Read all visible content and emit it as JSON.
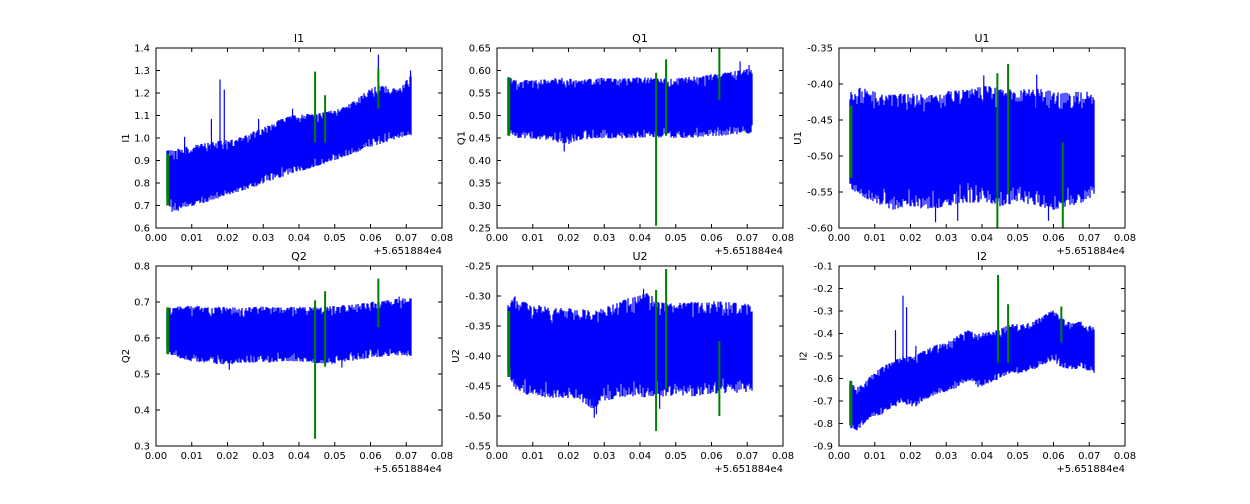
{
  "figure": {
    "background": "#ffffff",
    "text_color": "#000000",
    "line_color": "#0000ff",
    "event_color": "#008000",
    "frame_color": "#000000",
    "x_offset_label": "+5.651884e4",
    "xlim": [
      0,
      0.08
    ],
    "xticks": {
      "values": [
        0,
        0.01,
        0.02,
        0.03,
        0.04,
        0.05,
        0.06,
        0.07,
        0.08
      ],
      "labels": [
        "0.00",
        "0.01",
        "0.02",
        "0.03",
        "0.04",
        "0.05",
        "0.06",
        "0.07",
        "0.08"
      ]
    },
    "grid": false,
    "legend": "none"
  },
  "chart_data": [
    {
      "type": "line",
      "title": "I1",
      "ylabel": "I1",
      "ylim": [
        0.6,
        1.4
      ],
      "yticks": {
        "values": [
          0.6,
          0.7,
          0.8,
          0.9,
          1.0,
          1.1,
          1.2,
          1.3,
          1.4
        ],
        "labels": [
          "0.6",
          "0.7",
          "0.8",
          "0.9",
          "1.0",
          "1.1",
          "1.2",
          "1.3",
          "1.4"
        ]
      },
      "band": [
        [
          0.0031,
          0.7,
          0.945
        ],
        [
          0.005,
          0.675,
          0.95
        ],
        [
          0.008,
          0.69,
          0.96
        ],
        [
          0.011,
          0.7,
          0.97
        ],
        [
          0.014,
          0.715,
          0.98
        ],
        [
          0.017,
          0.73,
          0.985
        ],
        [
          0.02,
          0.745,
          0.995
        ],
        [
          0.023,
          0.76,
          1.0
        ],
        [
          0.026,
          0.775,
          1.02
        ],
        [
          0.029,
          0.79,
          1.04
        ],
        [
          0.032,
          0.81,
          1.06
        ],
        [
          0.035,
          0.825,
          1.085
        ],
        [
          0.038,
          0.84,
          1.1
        ],
        [
          0.041,
          0.855,
          1.105
        ],
        [
          0.044,
          0.87,
          1.11
        ],
        [
          0.047,
          0.885,
          1.115
        ],
        [
          0.05,
          0.9,
          1.125
        ],
        [
          0.053,
          0.92,
          1.14
        ],
        [
          0.056,
          0.935,
          1.17
        ],
        [
          0.059,
          0.955,
          1.21
        ],
        [
          0.062,
          0.97,
          1.235
        ],
        [
          0.065,
          0.985,
          1.23
        ],
        [
          0.068,
          1.0,
          1.22
        ],
        [
          0.0714,
          1.01,
          1.28
        ]
      ],
      "spikes": [
        [
          0.008,
          1.005
        ],
        [
          0.0155,
          1.085
        ],
        [
          0.0179,
          1.26
        ],
        [
          0.0191,
          1.215
        ],
        [
          0.0287,
          1.085
        ],
        [
          0.0382,
          1.13
        ],
        [
          0.0622,
          1.37
        ],
        [
          0.0712,
          1.3
        ],
        [
          0.0045,
          0.672
        ],
        [
          0.0062,
          0.676
        ]
      ],
      "events": [
        [
          0.0033,
          0.7,
          0.93,
          3
        ],
        [
          0.0445,
          0.98,
          1.295,
          2
        ],
        [
          0.0473,
          0.98,
          1.19,
          2
        ],
        [
          0.0622,
          1.13,
          1.31,
          2
        ]
      ]
    },
    {
      "type": "line",
      "title": "Q1",
      "ylabel": "Q1",
      "ylim": [
        0.25,
        0.65
      ],
      "yticks": {
        "values": [
          0.25,
          0.3,
          0.35,
          0.4,
          0.45,
          0.5,
          0.55,
          0.6,
          0.65
        ],
        "labels": [
          "0.25",
          "0.30",
          "0.35",
          "0.40",
          "0.45",
          "0.50",
          "0.55",
          "0.60",
          "0.65"
        ]
      },
      "band": [
        [
          0.0031,
          0.455,
          0.585
        ],
        [
          0.006,
          0.45,
          0.58
        ],
        [
          0.01,
          0.448,
          0.578
        ],
        [
          0.015,
          0.445,
          0.582
        ],
        [
          0.019,
          0.432,
          0.585
        ],
        [
          0.023,
          0.445,
          0.58
        ],
        [
          0.028,
          0.45,
          0.585
        ],
        [
          0.033,
          0.448,
          0.582
        ],
        [
          0.038,
          0.45,
          0.585
        ],
        [
          0.043,
          0.452,
          0.585
        ],
        [
          0.048,
          0.45,
          0.582
        ],
        [
          0.053,
          0.45,
          0.585
        ],
        [
          0.058,
          0.452,
          0.59
        ],
        [
          0.063,
          0.455,
          0.595
        ],
        [
          0.067,
          0.458,
          0.6
        ],
        [
          0.0714,
          0.46,
          0.605
        ]
      ],
      "spikes": [
        [
          0.0188,
          0.42
        ],
        [
          0.068,
          0.62
        ],
        [
          0.0705,
          0.612
        ]
      ],
      "events": [
        [
          0.0033,
          0.455,
          0.585,
          3
        ],
        [
          0.0445,
          0.255,
          0.595,
          2
        ],
        [
          0.0473,
          0.455,
          0.625,
          2
        ],
        [
          0.0622,
          0.535,
          0.65,
          2
        ]
      ]
    },
    {
      "type": "line",
      "title": "U1",
      "ylabel": "U1",
      "ylim": [
        -0.6,
        -0.35
      ],
      "yticks": {
        "values": [
          -0.6,
          -0.55,
          -0.5,
          -0.45,
          -0.4,
          -0.35
        ],
        "labels": [
          "-0.60",
          "-0.55",
          "-0.50",
          "-0.45",
          "-0.40",
          "-0.35"
        ]
      },
      "band": [
        [
          0.0031,
          -0.545,
          -0.41
        ],
        [
          0.006,
          -0.555,
          -0.405
        ],
        [
          0.01,
          -0.565,
          -0.41
        ],
        [
          0.015,
          -0.575,
          -0.415
        ],
        [
          0.02,
          -0.57,
          -0.412
        ],
        [
          0.025,
          -0.575,
          -0.415
        ],
        [
          0.03,
          -0.57,
          -0.41
        ],
        [
          0.035,
          -0.565,
          -0.408
        ],
        [
          0.04,
          -0.565,
          -0.402
        ],
        [
          0.045,
          -0.57,
          -0.405
        ],
        [
          0.05,
          -0.565,
          -0.408
        ],
        [
          0.055,
          -0.57,
          -0.405
        ],
        [
          0.06,
          -0.575,
          -0.41
        ],
        [
          0.065,
          -0.57,
          -0.412
        ],
        [
          0.068,
          -0.565,
          -0.408
        ],
        [
          0.0714,
          -0.555,
          -0.415
        ]
      ],
      "spikes": [
        [
          0.027,
          -0.592
        ],
        [
          0.0405,
          -0.388
        ],
        [
          0.0553,
          -0.387
        ],
        [
          0.0586,
          -0.59
        ],
        [
          0.0332,
          -0.59
        ]
      ],
      "events": [
        [
          0.0033,
          -0.53,
          -0.43,
          3
        ],
        [
          0.0443,
          -0.6,
          -0.385,
          2
        ],
        [
          0.0473,
          -0.553,
          -0.372,
          2
        ],
        [
          0.0626,
          -0.6,
          -0.481,
          2
        ]
      ]
    },
    {
      "type": "line",
      "title": "Q2",
      "ylabel": "Q2",
      "ylim": [
        0.3,
        0.8
      ],
      "yticks": {
        "values": [
          0.3,
          0.4,
          0.5,
          0.6,
          0.7,
          0.8
        ],
        "labels": [
          "0.3",
          "0.4",
          "0.5",
          "0.6",
          "0.7",
          "0.8"
        ]
      },
      "band": [
        [
          0.0031,
          0.56,
          0.685
        ],
        [
          0.006,
          0.545,
          0.688
        ],
        [
          0.01,
          0.535,
          0.69
        ],
        [
          0.015,
          0.53,
          0.688
        ],
        [
          0.02,
          0.525,
          0.69
        ],
        [
          0.025,
          0.532,
          0.685
        ],
        [
          0.03,
          0.53,
          0.688
        ],
        [
          0.035,
          0.535,
          0.685
        ],
        [
          0.04,
          0.535,
          0.688
        ],
        [
          0.045,
          0.53,
          0.685
        ],
        [
          0.05,
          0.528,
          0.69
        ],
        [
          0.055,
          0.535,
          0.693
        ],
        [
          0.06,
          0.545,
          0.7
        ],
        [
          0.065,
          0.55,
          0.705
        ],
        [
          0.068,
          0.552,
          0.71
        ],
        [
          0.0714,
          0.55,
          0.712
        ]
      ],
      "spikes": [
        [
          0.0205,
          0.512
        ],
        [
          0.052,
          0.518
        ],
        [
          0.068,
          0.715
        ]
      ],
      "events": [
        [
          0.0033,
          0.555,
          0.685,
          3
        ],
        [
          0.0445,
          0.32,
          0.705,
          2
        ],
        [
          0.0473,
          0.52,
          0.73,
          2
        ],
        [
          0.0622,
          0.63,
          0.765,
          2
        ]
      ]
    },
    {
      "type": "line",
      "title": "U2",
      "ylabel": "U2",
      "ylim": [
        -0.55,
        -0.25
      ],
      "yticks": {
        "values": [
          -0.55,
          -0.5,
          -0.45,
          -0.4,
          -0.35,
          -0.3,
          -0.25
        ],
        "labels": [
          "-0.55",
          "-0.50",
          "-0.45",
          "-0.40",
          "-0.35",
          "-0.30",
          "-0.25"
        ]
      },
      "band": [
        [
          0.0031,
          -0.43,
          -0.315
        ],
        [
          0.005,
          -0.455,
          -0.3
        ],
        [
          0.008,
          -0.465,
          -0.31
        ],
        [
          0.012,
          -0.468,
          -0.315
        ],
        [
          0.016,
          -0.47,
          -0.32
        ],
        [
          0.02,
          -0.472,
          -0.32
        ],
        [
          0.024,
          -0.478,
          -0.322
        ],
        [
          0.027,
          -0.49,
          -0.325
        ],
        [
          0.03,
          -0.475,
          -0.32
        ],
        [
          0.034,
          -0.47,
          -0.31
        ],
        [
          0.038,
          -0.468,
          -0.3
        ],
        [
          0.042,
          -0.47,
          -0.295
        ],
        [
          0.046,
          -0.468,
          -0.31
        ],
        [
          0.05,
          -0.465,
          -0.312
        ],
        [
          0.055,
          -0.468,
          -0.31
        ],
        [
          0.06,
          -0.465,
          -0.308
        ],
        [
          0.065,
          -0.462,
          -0.31
        ],
        [
          0.0714,
          -0.46,
          -0.312
        ]
      ],
      "spikes": [
        [
          0.0272,
          -0.503
        ],
        [
          0.0278,
          -0.497
        ],
        [
          0.041,
          -0.288
        ],
        [
          0.0455,
          -0.488
        ]
      ],
      "events": [
        [
          0.0033,
          -0.435,
          -0.325,
          3
        ],
        [
          0.0445,
          -0.525,
          -0.29,
          2
        ],
        [
          0.0473,
          -0.455,
          -0.255,
          2
        ],
        [
          0.0622,
          -0.5,
          -0.375,
          2
        ]
      ]
    },
    {
      "type": "line",
      "title": "I2",
      "ylabel": "I2",
      "ylim": [
        -0.9,
        -0.1
      ],
      "yticks": {
        "values": [
          -0.9,
          -0.8,
          -0.7,
          -0.6,
          -0.5,
          -0.4,
          -0.3,
          -0.2,
          -0.1
        ],
        "labels": [
          "-0.9",
          "-0.8",
          "-0.7",
          "-0.6",
          "-0.5",
          "-0.4",
          "-0.3",
          "-0.2",
          "-0.1"
        ]
      },
      "band": [
        [
          0.0031,
          -0.82,
          -0.62
        ],
        [
          0.005,
          -0.835,
          -0.64
        ],
        [
          0.007,
          -0.8,
          -0.62
        ],
        [
          0.009,
          -0.77,
          -0.585
        ],
        [
          0.012,
          -0.76,
          -0.55
        ],
        [
          0.015,
          -0.73,
          -0.52
        ],
        [
          0.018,
          -0.71,
          -0.5
        ],
        [
          0.021,
          -0.73,
          -0.5
        ],
        [
          0.024,
          -0.7,
          -0.475
        ],
        [
          0.027,
          -0.67,
          -0.45
        ],
        [
          0.03,
          -0.66,
          -0.44
        ],
        [
          0.033,
          -0.64,
          -0.41
        ],
        [
          0.036,
          -0.61,
          -0.385
        ],
        [
          0.039,
          -0.64,
          -0.4
        ],
        [
          0.042,
          -0.62,
          -0.39
        ],
        [
          0.045,
          -0.6,
          -0.38
        ],
        [
          0.048,
          -0.575,
          -0.355
        ],
        [
          0.051,
          -0.58,
          -0.36
        ],
        [
          0.054,
          -0.565,
          -0.35
        ],
        [
          0.057,
          -0.54,
          -0.32
        ],
        [
          0.06,
          -0.52,
          -0.295
        ],
        [
          0.062,
          -0.55,
          -0.33
        ],
        [
          0.065,
          -0.56,
          -0.35
        ],
        [
          0.068,
          -0.555,
          -0.345
        ],
        [
          0.0714,
          -0.585,
          -0.375
        ]
      ],
      "spikes": [
        [
          0.0158,
          -0.385
        ],
        [
          0.0179,
          -0.232
        ],
        [
          0.0189,
          -0.283
        ],
        [
          0.0215,
          -0.455
        ],
        [
          0.0446,
          -0.32
        ]
      ],
      "events": [
        [
          0.0033,
          -0.81,
          -0.61,
          3
        ],
        [
          0.0445,
          -0.53,
          -0.14,
          2
        ],
        [
          0.0473,
          -0.53,
          -0.27,
          2
        ],
        [
          0.0622,
          -0.44,
          -0.28,
          2
        ]
      ]
    }
  ]
}
